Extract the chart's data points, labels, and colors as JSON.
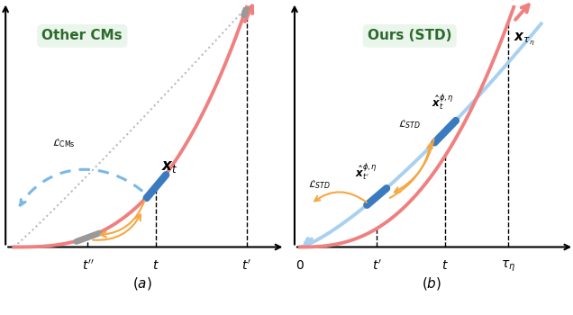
{
  "fig_width": 6.36,
  "fig_height": 3.5,
  "dpi": 100,
  "background_color": "#ffffff",
  "pink_color": "#f08080",
  "blue_seg_color": "#3a7bbf",
  "gray_seg_color": "#999999",
  "light_blue_color": "#a8d0f0",
  "blue_dot_color": "#7ab8e8",
  "gray_dot_color": "#bbbbbb",
  "orange_color": "#f5a742"
}
